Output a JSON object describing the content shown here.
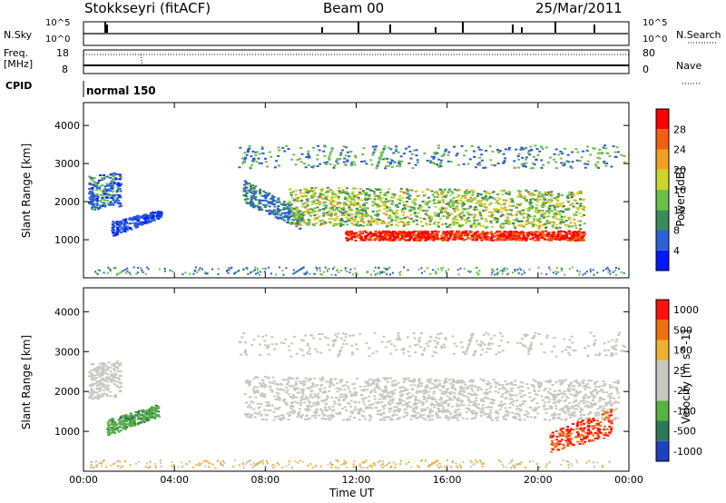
{
  "header": {
    "radar": "Stokkseyri (fitACF)",
    "beam": "Beam 00",
    "date": "25/Mar/2011"
  },
  "top_panels": {
    "nsky_label": "N.Sky",
    "nsearch_label": "N.Search",
    "noise_ticks_left": [
      "10^5",
      "10^0"
    ],
    "noise_ticks_right": [
      "10^5",
      "10^0"
    ],
    "freq_label": "Freq.",
    "freq_unit": "[MHz]",
    "freq_ticks": [
      "18",
      "8"
    ],
    "nave_label": "Nave",
    "nave_ticks": [
      "80",
      "0"
    ],
    "cpid_label": "CPID",
    "cpid_value": "normal 150"
  },
  "chart_data": [
    {
      "type": "heatmap",
      "name": "power-panel",
      "ylabel": "Slant Range [km]",
      "xlabel": "",
      "x_ticks": [
        "00:00",
        "04:00",
        "08:00",
        "12:00",
        "16:00",
        "20:00",
        "00:00"
      ],
      "y_ticks": [
        "1000",
        "2000",
        "3000",
        "4000"
      ],
      "ylim": [
        0,
        4600
      ],
      "colorbar": {
        "label": "Power [dB]",
        "ticks": [
          "28",
          "24",
          "20",
          "16",
          "12",
          "8",
          "4"
        ],
        "colors": [
          "#0018ff",
          "#2a5fd6",
          "#3b8a5a",
          "#6cc04a",
          "#c9d62a",
          "#f0a020",
          "#f06010",
          "#ff0000"
        ]
      }
    },
    {
      "type": "heatmap",
      "name": "velocity-panel",
      "ylabel": "Slant Range [km]",
      "xlabel": "Time UT",
      "x_ticks": [
        "00:00",
        "04:00",
        "08:00",
        "12:00",
        "16:00",
        "20:00",
        "00:00"
      ],
      "y_ticks": [
        "1000",
        "2000",
        "3000",
        "4000"
      ],
      "ylim": [
        0,
        4600
      ],
      "colorbar": {
        "label": "Velocity [m s^-1]",
        "ticks": [
          "1000",
          "500",
          "100",
          "25",
          "-25",
          "-100",
          "-500",
          "-1000"
        ],
        "colors": [
          "#2040c0",
          "#2a7a5a",
          "#5ab040",
          "#c8c8c0",
          "#c8c8c0",
          "#f0b030",
          "#f07010",
          "#ff1010"
        ]
      }
    }
  ]
}
